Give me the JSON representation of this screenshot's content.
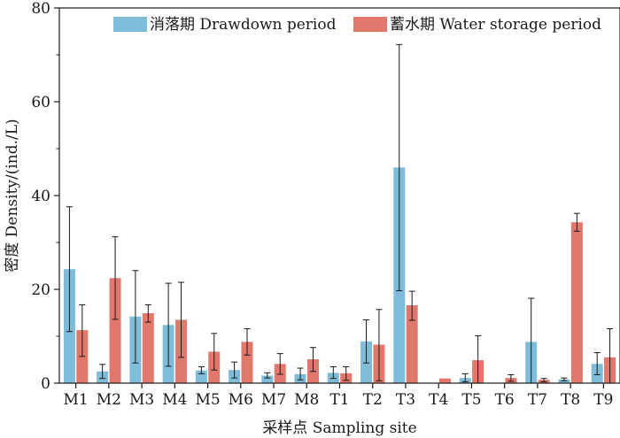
{
  "chart_data": {
    "type": "bar",
    "title": "",
    "xlabel": "采样点 Sampling site",
    "ylabel": "密度 Density/(ind./L)",
    "ylim": [
      0,
      80
    ],
    "yticks": [
      0,
      20,
      40,
      60,
      80
    ],
    "grid": false,
    "legend_position": "top",
    "categories": [
      "M1",
      "M2",
      "M3",
      "M4",
      "M5",
      "M6",
      "M7",
      "M8",
      "T1",
      "T2",
      "T3",
      "T4",
      "T5",
      "T6",
      "T7",
      "T8",
      "T9"
    ],
    "series": [
      {
        "name": "消落期 Drawdown period",
        "color": "#7fbcd9",
        "values": [
          24.3,
          2.5,
          14.2,
          12.4,
          2.7,
          2.8,
          1.6,
          1.9,
          2.2,
          8.9,
          46.0,
          0,
          1.1,
          0,
          8.8,
          0.8,
          4.1
        ],
        "error_high": [
          37.6,
          4.0,
          24.0,
          21.3,
          3.5,
          4.5,
          2.2,
          3.2,
          3.5,
          13.5,
          72.2,
          0,
          2.0,
          0,
          18.1,
          1.1,
          6.5
        ],
        "error_low": [
          11.0,
          1.0,
          4.3,
          3.6,
          2.0,
          1.1,
          1.1,
          0.7,
          1.0,
          4.3,
          19.7,
          0,
          0.3,
          0,
          0,
          0.5,
          1.8
        ]
      },
      {
        "name": "蓄水期 Water storage period",
        "color": "#e2776b",
        "values": [
          11.3,
          22.4,
          14.9,
          13.5,
          6.7,
          8.8,
          4.1,
          5.1,
          2.1,
          8.2,
          16.6,
          1.0,
          4.9,
          1.1,
          0.7,
          34.3,
          5.5
        ],
        "error_high": [
          16.7,
          31.2,
          16.7,
          21.5,
          10.6,
          11.6,
          6.3,
          7.6,
          3.5,
          15.7,
          19.6,
          1.0,
          10.1,
          1.8,
          1.0,
          36.2,
          11.6
        ],
        "error_low": [
          5.7,
          13.6,
          13.0,
          5.5,
          2.8,
          6.0,
          1.9,
          2.5,
          0.6,
          0.5,
          13.4,
          1.0,
          0,
          0.4,
          0.3,
          32.4,
          0
        ]
      }
    ]
  }
}
